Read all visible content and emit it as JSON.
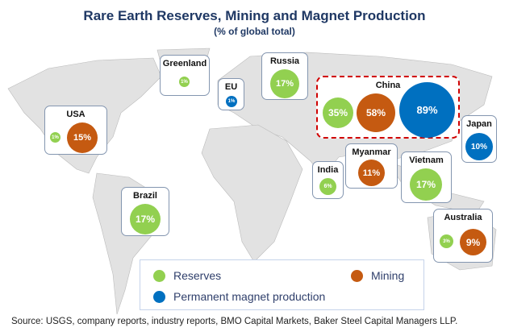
{
  "chart_data": {
    "type": "bubble-map",
    "title": "Rare Earth Reserves, Mining and Magnet Production",
    "subtitle": "(% of global total)",
    "series": [
      {
        "name": "Reserves",
        "color": "#92d050"
      },
      {
        "name": "Mining",
        "color": "#c55a11"
      },
      {
        "name": "Permanent magnet production",
        "color": "#0070c0"
      }
    ],
    "countries": {
      "greenland": {
        "name": "Greenland",
        "reserves": "1%"
      },
      "eu": {
        "name": "EU",
        "magnet": "1%"
      },
      "russia": {
        "name": "Russia",
        "reserves": "17%"
      },
      "china": {
        "name": "China",
        "reserves": "35%",
        "mining": "58%",
        "magnet": "89%"
      },
      "usa": {
        "name": "USA",
        "reserves": "1%",
        "mining": "15%"
      },
      "japan": {
        "name": "Japan",
        "magnet": "10%"
      },
      "myanmar": {
        "name": "Myanmar",
        "mining": "11%"
      },
      "vietnam": {
        "name": "Vietnam",
        "reserves": "17%"
      },
      "india": {
        "name": "India",
        "reserves": "6%"
      },
      "brazil": {
        "name": "Brazil",
        "reserves": "17%"
      },
      "australia": {
        "name": "Australia",
        "reserves": "3%",
        "mining": "9%"
      }
    },
    "legend": {
      "reserves": "Reserves",
      "mining": "Mining",
      "magnet": "Permanent magnet production"
    },
    "source": "Source: USGS, company reports, industry reports, BMO Capital Markets, Baker Steel Capital Managers LLP."
  }
}
